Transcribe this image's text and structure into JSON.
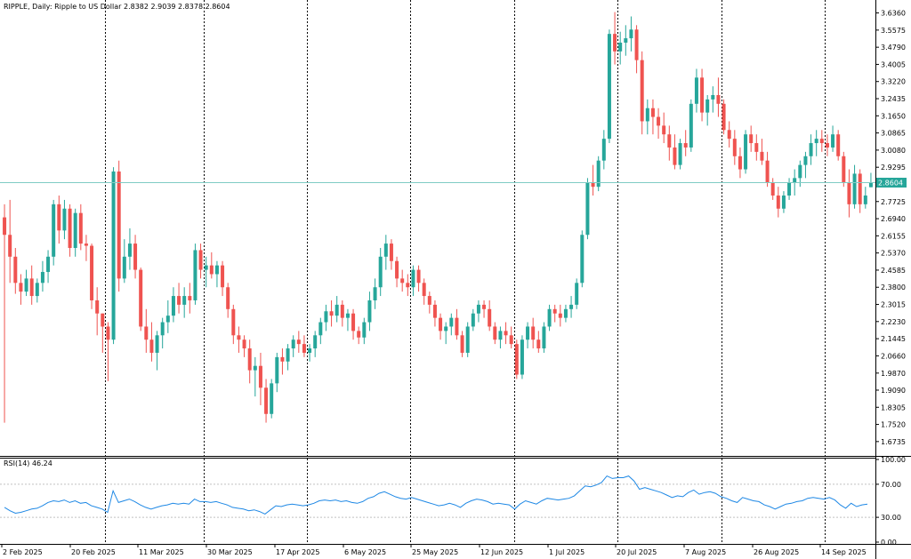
{
  "header": {
    "symbol": "RIPPLE",
    "timeframe": "Daily",
    "description": "Ripple to US Dollar",
    "ohlc": "2.8382 2.9039 2.8378 2.8604"
  },
  "colors": {
    "bull": "#26a69a",
    "bear": "#ef5350",
    "rsi_line": "#1e88e5",
    "bid_line": "#80cbc4",
    "current_price_bg": "#26a69a",
    "grid_separator": "#000000"
  },
  "chart_data": [
    {
      "type": "candlestick",
      "title": "RIPPLE, Daily: Ripple to US Dollar 2.8382 2.9039 2.8378 2.8604",
      "ylim": [
        1.62,
        3.679
      ],
      "y_ticks": [
        "3.6360",
        "3.5575",
        "3.4790",
        "3.4005",
        "3.3220",
        "3.2435",
        "3.1650",
        "3.0865",
        "3.0080",
        "2.9295",
        "2.8510",
        "2.7725",
        "2.6940",
        "2.6155",
        "2.5370",
        "2.4585",
        "2.3800",
        "2.3015",
        "2.2230",
        "2.1445",
        "2.0660",
        "1.9870",
        "1.9090",
        "1.8305",
        "1.7520",
        "1.6735"
      ],
      "current_price": "2.8604",
      "x_labels": [
        "2 Feb 2025",
        "20 Feb 2025",
        "11 Mar 2025",
        "30 Mar 2025",
        "17 Apr 2025",
        "6 May 2025",
        "25 May 2025",
        "12 Jun 2025",
        "1 Jul 2025",
        "20 Jul 2025",
        "7 Aug 2025",
        "26 Aug 2025",
        "14 Sep 2025"
      ],
      "ohlc": [
        [
          2.7,
          2.76,
          1.76,
          2.62
        ],
        [
          2.62,
          2.78,
          2.4,
          2.52
        ],
        [
          2.52,
          2.56,
          2.35,
          2.4
        ],
        [
          2.4,
          2.44,
          2.3,
          2.36
        ],
        [
          2.36,
          2.46,
          2.34,
          2.42
        ],
        [
          2.42,
          2.48,
          2.3,
          2.34
        ],
        [
          2.34,
          2.42,
          2.31,
          2.4
        ],
        [
          2.4,
          2.5,
          2.36,
          2.45
        ],
        [
          2.45,
          2.55,
          2.4,
          2.52
        ],
        [
          2.52,
          2.78,
          2.48,
          2.76
        ],
        [
          2.76,
          2.8,
          2.58,
          2.64
        ],
        [
          2.64,
          2.78,
          2.6,
          2.74
        ],
        [
          2.74,
          2.76,
          2.52,
          2.56
        ],
        [
          2.56,
          2.74,
          2.52,
          2.72
        ],
        [
          2.72,
          2.76,
          2.55,
          2.58
        ],
        [
          2.58,
          2.62,
          2.5,
          2.57
        ],
        [
          2.57,
          2.58,
          2.28,
          2.32
        ],
        [
          2.32,
          2.38,
          2.16,
          2.26
        ],
        [
          2.26,
          2.26,
          2.08,
          2.2
        ],
        [
          2.2,
          2.22,
          1.95,
          2.14
        ],
        [
          2.14,
          2.93,
          2.12,
          2.91
        ],
        [
          2.91,
          2.96,
          2.36,
          2.42
        ],
        [
          2.42,
          2.6,
          2.4,
          2.52
        ],
        [
          2.52,
          2.65,
          2.46,
          2.58
        ],
        [
          2.58,
          2.62,
          2.42,
          2.46
        ],
        [
          2.46,
          2.47,
          2.18,
          2.2
        ],
        [
          2.2,
          2.28,
          2.08,
          2.14
        ],
        [
          2.14,
          2.22,
          2.04,
          2.08
        ],
        [
          2.08,
          2.18,
          2.0,
          2.16
        ],
        [
          2.16,
          2.24,
          2.1,
          2.22
        ],
        [
          2.22,
          2.32,
          2.17,
          2.25
        ],
        [
          2.25,
          2.38,
          2.22,
          2.34
        ],
        [
          2.34,
          2.4,
          2.26,
          2.3
        ],
        [
          2.3,
          2.38,
          2.24,
          2.34
        ],
        [
          2.34,
          2.4,
          2.26,
          2.32
        ],
        [
          2.32,
          2.58,
          2.3,
          2.55
        ],
        [
          2.55,
          2.58,
          2.42,
          2.46
        ],
        [
          2.46,
          2.52,
          2.38,
          2.48
        ],
        [
          2.48,
          2.54,
          2.42,
          2.44
        ],
        [
          2.44,
          2.5,
          2.38,
          2.48
        ],
        [
          2.48,
          2.5,
          2.34,
          2.38
        ],
        [
          2.38,
          2.4,
          2.24,
          2.28
        ],
        [
          2.28,
          2.3,
          2.12,
          2.16
        ],
        [
          2.16,
          2.2,
          2.08,
          2.14
        ],
        [
          2.14,
          2.16,
          2.06,
          2.1
        ],
        [
          2.1,
          2.14,
          1.94,
          2.0
        ],
        [
          2.0,
          2.06,
          1.88,
          2.02
        ],
        [
          2.02,
          2.08,
          1.84,
          1.92
        ],
        [
          1.92,
          1.96,
          1.76,
          1.8
        ],
        [
          1.8,
          1.96,
          1.78,
          1.94
        ],
        [
          1.94,
          2.08,
          1.9,
          2.06
        ],
        [
          2.06,
          2.1,
          1.98,
          2.04
        ],
        [
          2.04,
          2.12,
          2.0,
          2.1
        ],
        [
          2.1,
          2.16,
          2.06,
          2.14
        ],
        [
          2.14,
          2.18,
          2.08,
          2.12
        ],
        [
          2.12,
          2.16,
          2.06,
          2.08
        ],
        [
          2.08,
          2.12,
          2.04,
          2.1
        ],
        [
          2.1,
          2.18,
          2.06,
          2.16
        ],
        [
          2.16,
          2.24,
          2.12,
          2.22
        ],
        [
          2.22,
          2.3,
          2.18,
          2.27
        ],
        [
          2.27,
          2.32,
          2.2,
          2.25
        ],
        [
          2.25,
          2.34,
          2.22,
          2.3
        ],
        [
          2.3,
          2.32,
          2.2,
          2.24
        ],
        [
          2.24,
          2.28,
          2.18,
          2.26
        ],
        [
          2.26,
          2.28,
          2.14,
          2.18
        ],
        [
          2.18,
          2.2,
          2.12,
          2.15
        ],
        [
          2.15,
          2.24,
          2.12,
          2.22
        ],
        [
          2.22,
          2.36,
          2.18,
          2.32
        ],
        [
          2.32,
          2.42,
          2.28,
          2.38
        ],
        [
          2.38,
          2.56,
          2.34,
          2.52
        ],
        [
          2.52,
          2.62,
          2.46,
          2.58
        ],
        [
          2.58,
          2.6,
          2.46,
          2.5
        ],
        [
          2.5,
          2.52,
          2.38,
          2.42
        ],
        [
          2.42,
          2.46,
          2.36,
          2.4
        ],
        [
          2.4,
          2.44,
          2.34,
          2.38
        ],
        [
          2.38,
          2.48,
          2.34,
          2.46
        ],
        [
          2.46,
          2.48,
          2.36,
          2.4
        ],
        [
          2.4,
          2.42,
          2.3,
          2.34
        ],
        [
          2.34,
          2.36,
          2.26,
          2.3
        ],
        [
          2.3,
          2.32,
          2.2,
          2.24
        ],
        [
          2.24,
          2.26,
          2.14,
          2.18
        ],
        [
          2.18,
          2.22,
          2.12,
          2.2
        ],
        [
          2.2,
          2.26,
          2.16,
          2.24
        ],
        [
          2.24,
          2.28,
          2.14,
          2.16
        ],
        [
          2.16,
          2.18,
          2.06,
          2.08
        ],
        [
          2.08,
          2.22,
          2.06,
          2.2
        ],
        [
          2.2,
          2.28,
          2.18,
          2.26
        ],
        [
          2.26,
          2.32,
          2.22,
          2.3
        ],
        [
          2.3,
          2.32,
          2.24,
          2.28
        ],
        [
          2.28,
          2.32,
          2.18,
          2.2
        ],
        [
          2.2,
          2.22,
          2.12,
          2.14
        ],
        [
          2.14,
          2.2,
          2.1,
          2.18
        ],
        [
          2.18,
          2.22,
          2.12,
          2.16
        ],
        [
          2.16,
          2.2,
          2.1,
          2.12
        ],
        [
          2.12,
          2.14,
          1.96,
          1.98
        ],
        [
          1.98,
          2.16,
          1.96,
          2.14
        ],
        [
          2.14,
          2.22,
          2.1,
          2.2
        ],
        [
          2.2,
          2.24,
          2.1,
          2.14
        ],
        [
          2.14,
          2.18,
          2.08,
          2.1
        ],
        [
          2.1,
          2.22,
          2.08,
          2.2
        ],
        [
          2.2,
          2.3,
          2.18,
          2.28
        ],
        [
          2.28,
          2.3,
          2.22,
          2.26
        ],
        [
          2.26,
          2.3,
          2.2,
          2.24
        ],
        [
          2.24,
          2.3,
          2.22,
          2.28
        ],
        [
          2.28,
          2.34,
          2.24,
          2.3
        ],
        [
          2.3,
          2.42,
          2.28,
          2.4
        ],
        [
          2.4,
          2.64,
          2.38,
          2.62
        ],
        [
          2.62,
          2.88,
          2.6,
          2.86
        ],
        [
          2.86,
          2.94,
          2.8,
          2.84
        ],
        [
          2.84,
          2.98,
          2.82,
          2.96
        ],
        [
          2.96,
          3.1,
          2.92,
          3.06
        ],
        [
          3.06,
          3.56,
          3.04,
          3.54
        ],
        [
          3.54,
          3.64,
          3.4,
          3.46
        ],
        [
          3.46,
          3.55,
          3.4,
          3.5
        ],
        [
          3.5,
          3.58,
          3.44,
          3.52
        ],
        [
          3.52,
          3.62,
          3.46,
          3.56
        ],
        [
          3.56,
          3.58,
          3.36,
          3.42
        ],
        [
          3.42,
          3.46,
          3.08,
          3.14
        ],
        [
          3.14,
          3.24,
          3.08,
          3.2
        ],
        [
          3.2,
          3.24,
          3.08,
          3.16
        ],
        [
          3.16,
          3.2,
          3.06,
          3.12
        ],
        [
          3.12,
          3.18,
          3.04,
          3.08
        ],
        [
          3.08,
          3.12,
          2.96,
          3.02
        ],
        [
          3.02,
          3.08,
          2.92,
          2.94
        ],
        [
          2.94,
          3.06,
          2.92,
          3.04
        ],
        [
          3.04,
          3.1,
          2.98,
          3.02
        ],
        [
          3.02,
          3.24,
          3.0,
          3.22
        ],
        [
          3.22,
          3.38,
          3.18,
          3.34
        ],
        [
          3.34,
          3.38,
          3.14,
          3.18
        ],
        [
          3.18,
          3.26,
          3.12,
          3.24
        ],
        [
          3.24,
          3.3,
          3.18,
          3.26
        ],
        [
          3.26,
          3.34,
          3.16,
          3.22
        ],
        [
          3.22,
          3.24,
          3.08,
          3.1
        ],
        [
          3.1,
          3.14,
          3.02,
          3.06
        ],
        [
          3.06,
          3.1,
          2.94,
          2.98
        ],
        [
          2.98,
          3.02,
          2.88,
          2.92
        ],
        [
          2.92,
          3.1,
          2.9,
          3.08
        ],
        [
          3.08,
          3.12,
          3.0,
          3.04
        ],
        [
          3.04,
          3.08,
          2.96,
          3.0
        ],
        [
          3.0,
          3.06,
          2.94,
          2.96
        ],
        [
          2.96,
          3.0,
          2.84,
          2.86
        ],
        [
          2.86,
          2.88,
          2.78,
          2.8
        ],
        [
          2.8,
          2.84,
          2.7,
          2.74
        ],
        [
          2.74,
          2.82,
          2.72,
          2.8
        ],
        [
          2.8,
          2.88,
          2.78,
          2.86
        ],
        [
          2.86,
          2.92,
          2.8,
          2.88
        ],
        [
          2.88,
          2.96,
          2.84,
          2.94
        ],
        [
          2.94,
          3.0,
          2.88,
          2.98
        ],
        [
          2.98,
          3.08,
          2.94,
          3.04
        ],
        [
          3.04,
          3.1,
          2.98,
          3.06
        ],
        [
          3.06,
          3.1,
          3.0,
          3.04
        ],
        [
          3.04,
          3.08,
          2.98,
          3.02
        ],
        [
          3.02,
          3.12,
          3.0,
          3.08
        ],
        [
          3.08,
          3.1,
          2.96,
          2.98
        ],
        [
          2.98,
          3.0,
          2.84,
          2.86
        ],
        [
          2.86,
          2.92,
          2.7,
          2.76
        ],
        [
          2.76,
          2.94,
          2.74,
          2.9
        ],
        [
          2.9,
          2.92,
          2.72,
          2.76
        ],
        [
          2.76,
          2.84,
          2.74,
          2.8
        ],
        [
          2.8382,
          2.9039,
          2.8378,
          2.8604
        ]
      ]
    },
    {
      "type": "line",
      "title": "RSI(14) 46.24",
      "ylim": [
        0,
        100
      ],
      "y_ticks": [
        "100.00",
        "70.00",
        "30.00",
        "0.00"
      ],
      "levels": [
        70,
        30
      ],
      "values": [
        42,
        38,
        35,
        36,
        38,
        40,
        41,
        44,
        48,
        50,
        49,
        51,
        48,
        50,
        47,
        48,
        44,
        42,
        40,
        36,
        62,
        48,
        50,
        52,
        49,
        45,
        42,
        40,
        42,
        44,
        45,
        47,
        46,
        47,
        46,
        52,
        49,
        49,
        48,
        49,
        47,
        45,
        42,
        41,
        40,
        38,
        39,
        37,
        34,
        39,
        44,
        43,
        45,
        46,
        45,
        44,
        45,
        47,
        50,
        51,
        50,
        51,
        49,
        50,
        48,
        47,
        49,
        53,
        55,
        59,
        61,
        58,
        55,
        53,
        52,
        54,
        52,
        50,
        48,
        46,
        44,
        45,
        47,
        45,
        42,
        47,
        50,
        52,
        51,
        49,
        46,
        47,
        46,
        45,
        40,
        46,
        50,
        48,
        46,
        50,
        53,
        52,
        51,
        52,
        53,
        56,
        62,
        68,
        67,
        69,
        72,
        80,
        77,
        78,
        78,
        80,
        74,
        64,
        66,
        64,
        62,
        60,
        57,
        54,
        56,
        55,
        60,
        63,
        58,
        60,
        61,
        59,
        55,
        53,
        50,
        48,
        54,
        52,
        50,
        49,
        45,
        43,
        40,
        43,
        46,
        47,
        49,
        50,
        53,
        54,
        53,
        52,
        54,
        51,
        45,
        41,
        47,
        43,
        45,
        46
      ]
    }
  ]
}
